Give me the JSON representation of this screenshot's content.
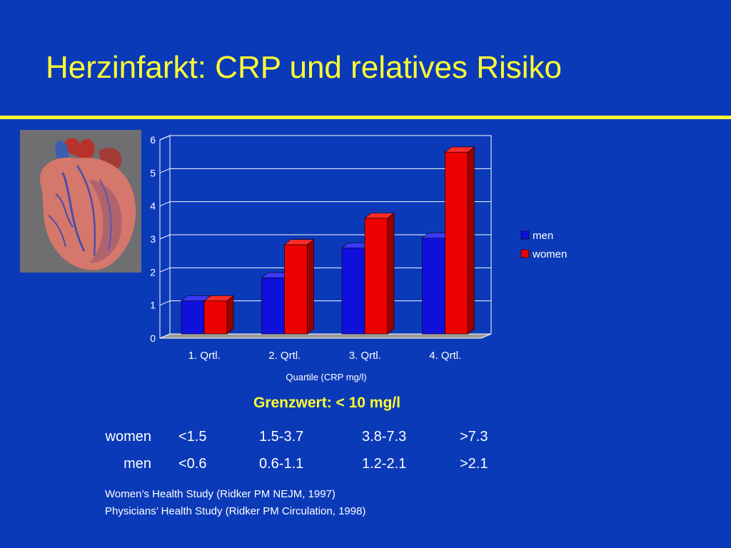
{
  "slide": {
    "title": "Herzinfarkt: CRP und relatives Risiko",
    "limit_text": "Grenzwert: < 10 mg/l",
    "sources": [
      "Women’s Health Study (Ridker PM NEJM, 1997)",
      "Physicians’ Health Study (Ridker PM Circulation, 1998)"
    ]
  },
  "ranges": {
    "rows": [
      {
        "label": "women",
        "values": [
          "<1.5",
          "1.5-3.7",
          "3.8-7.3",
          ">7.3"
        ]
      },
      {
        "label": "men",
        "values": [
          "<0.6",
          "0.6-1.1",
          "1.2-2.1",
          ">2.1"
        ]
      }
    ]
  },
  "colors": {
    "background": "#0b3ab8",
    "title": "#ffff33",
    "men": "#1010dd",
    "women": "#ee0000"
  },
  "chart_data": {
    "type": "bar",
    "title": "",
    "xlabel": "Quartile (CRP mg/l)",
    "ylabel": "",
    "categories": [
      "1. Qrtl.",
      "2. Qrtl.",
      "3. Qrtl.",
      "4. Qrtl."
    ],
    "series": [
      {
        "name": "men",
        "values": [
          1.0,
          1.7,
          2.6,
          2.9
        ]
      },
      {
        "name": "women",
        "values": [
          1.0,
          2.7,
          3.5,
          5.5
        ]
      }
    ],
    "ylim": [
      0,
      6
    ],
    "yticks": [
      "0",
      "1",
      "2",
      "3",
      "4",
      "5",
      "6"
    ],
    "grid": true,
    "legend": "right",
    "style": "3d"
  }
}
